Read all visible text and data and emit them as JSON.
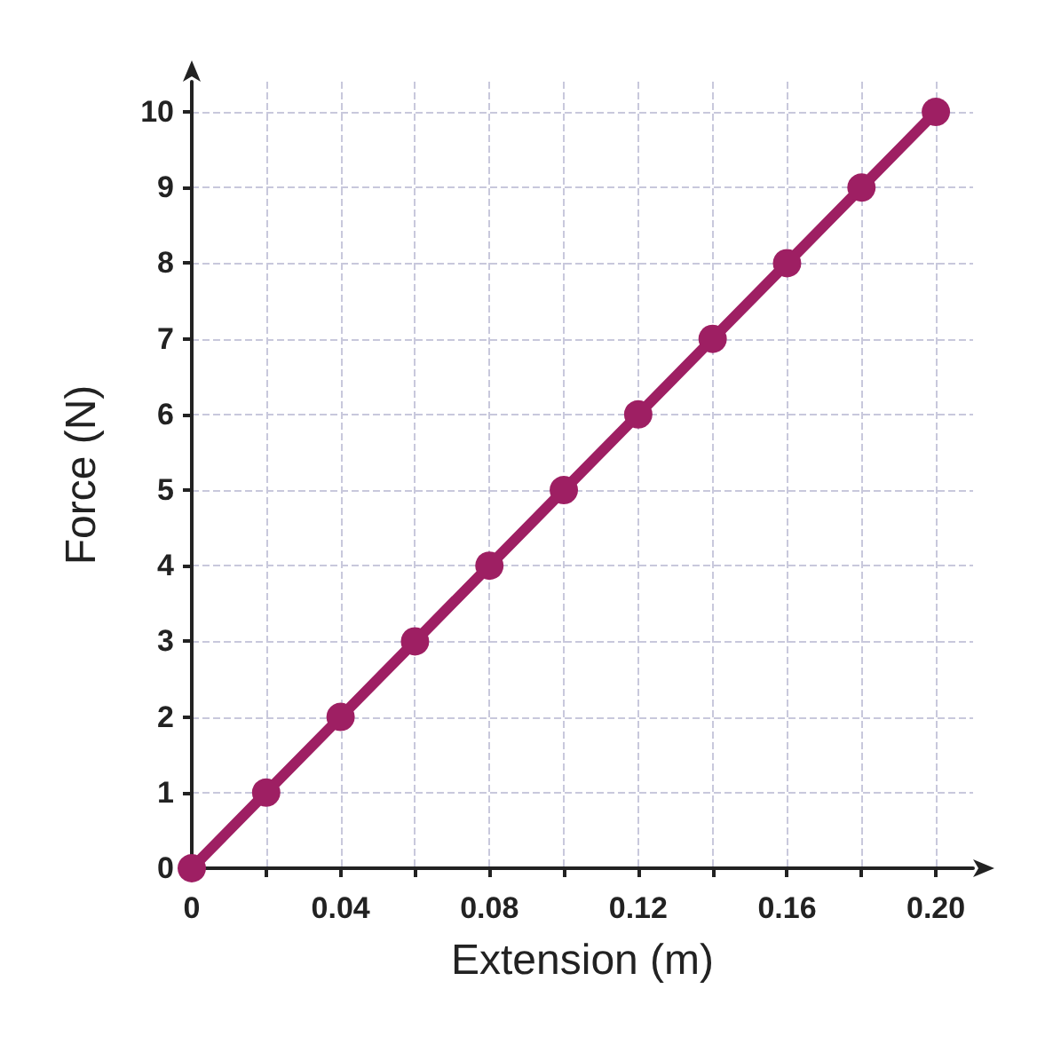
{
  "chart_data": {
    "type": "line",
    "xlabel": "Extension (m)",
    "ylabel": "Force (N)",
    "x": [
      0,
      0.02,
      0.04,
      0.06,
      0.08,
      0.1,
      0.12,
      0.14,
      0.16,
      0.18,
      0.2
    ],
    "series": [
      {
        "color": "#9e1f63",
        "values": [
          0,
          1,
          2,
          3,
          4,
          5,
          6,
          7,
          8,
          9,
          10
        ]
      }
    ],
    "xlim": [
      0,
      0.21
    ],
    "ylim": [
      0,
      10.4
    ],
    "xticks": [
      0,
      {
        "value": 0.02,
        "label": null
      },
      0.04,
      {
        "value": 0.06,
        "label": null
      },
      0.08,
      {
        "value": 0.1,
        "label": null
      },
      0.12,
      {
        "value": 0.14,
        "label": null
      },
      0.16,
      {
        "value": 0.18,
        "label": null
      },
      {
        "value": 0.2,
        "label": "0.20"
      }
    ],
    "yticks": [
      0,
      1,
      2,
      3,
      4,
      5,
      6,
      7,
      8,
      9,
      10
    ],
    "grid": true,
    "marker": "circle",
    "line_style": "solid"
  }
}
